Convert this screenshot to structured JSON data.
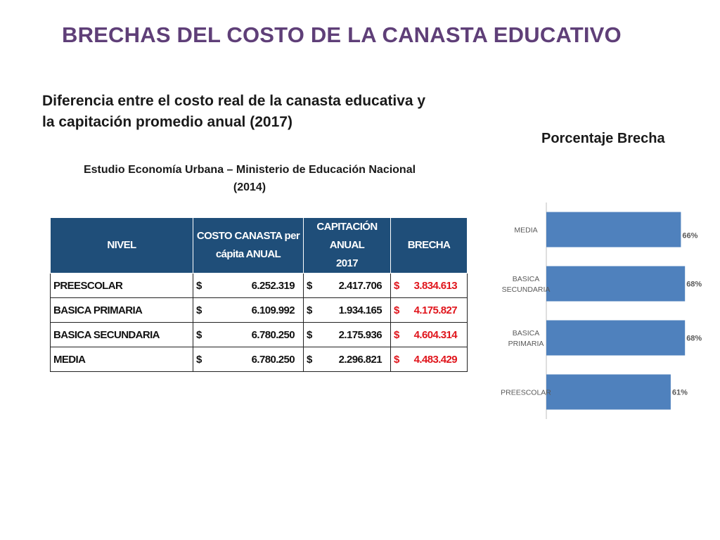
{
  "header": {
    "title": "BRECHAS DEL COSTO DE LA CANASTA EDUCATIVO",
    "subtitle": "Diferencia entre el costo real de la canasta educativa y la capitación promedio anual (2017)",
    "table_caption": "Estudio Economía Urbana – Ministerio de Educación Nacional (2014)",
    "chart_title": "Porcentaje Brecha"
  },
  "table": {
    "headers": {
      "nivel": "NIVEL",
      "costo_line1": "COSTO CANASTA per",
      "costo_line2": "cápita ANUAL",
      "capitacion_line1": "CAPITACIÓN ANUAL",
      "capitacion_line2": "2017",
      "brecha": "BRECHA"
    },
    "rows": [
      {
        "nivel": "PREESCOLAR",
        "costo": "6.252.319",
        "capitacion": "2.417.706",
        "brecha": "3.834.613"
      },
      {
        "nivel": "BASICA PRIMARIA",
        "costo": "6.109.992",
        "capitacion": "1.934.165",
        "brecha": "4.175.827"
      },
      {
        "nivel": "BASICA SECUNDARIA",
        "costo": "6.780.250",
        "capitacion": "2.175.936",
        "brecha": "4.604.314"
      },
      {
        "nivel": "MEDIA",
        "costo": "6.780.250",
        "capitacion": "2.296.821",
        "brecha": "4.483.429"
      }
    ],
    "currency_symbol": "$",
    "colors": {
      "header_bg": "#1f4e79",
      "gap_text": "#e0151c"
    }
  },
  "chart_data": {
    "type": "bar",
    "orientation": "horizontal",
    "categories": [
      "MEDIA",
      "BASICA SECUNDARIA",
      "BASICA PRIMARIA",
      "PREESCOLAR"
    ],
    "values": [
      66,
      68,
      68,
      61
    ],
    "data_labels": [
      "66%",
      "68%",
      "68%",
      "61%"
    ],
    "xlim": [
      0,
      100
    ],
    "grid": false,
    "legend": "none",
    "bar_color": "#4f81bd"
  }
}
